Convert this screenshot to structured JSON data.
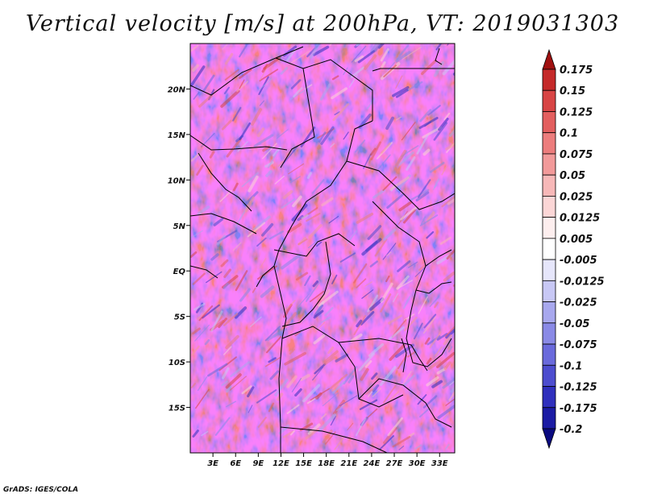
{
  "title": "Vertical velocity [m/s] at 200hPa, VT: 2019031303",
  "credit": "GrADS: IGES/COLA",
  "map": {
    "variable": "Vertical velocity",
    "units": "m/s",
    "level": "200hPa",
    "valid_time": "2019031303",
    "lon_range": [
      0,
      35
    ],
    "lat_range": [
      -20,
      25
    ],
    "lat_ticks": [
      {
        "value": 20,
        "label": "20N"
      },
      {
        "value": 15,
        "label": "15N"
      },
      {
        "value": 10,
        "label": "10N"
      },
      {
        "value": 5,
        "label": "5N"
      },
      {
        "value": 0,
        "label": "EQ"
      },
      {
        "value": -5,
        "label": "5S"
      },
      {
        "value": -10,
        "label": "10S"
      },
      {
        "value": -15,
        "label": "15S"
      }
    ],
    "lon_ticks": [
      {
        "value": 3,
        "label": "3E"
      },
      {
        "value": 6,
        "label": "6E"
      },
      {
        "value": 9,
        "label": "9E"
      },
      {
        "value": 12,
        "label": "12E"
      },
      {
        "value": 15,
        "label": "15E"
      },
      {
        "value": 18,
        "label": "18E"
      },
      {
        "value": 21,
        "label": "21E"
      },
      {
        "value": 24,
        "label": "24E"
      },
      {
        "value": 27,
        "label": "27E"
      },
      {
        "value": 30,
        "label": "30E"
      },
      {
        "value": 33,
        "label": "33E"
      }
    ]
  },
  "colorbar": {
    "labels": [
      "0.175",
      "0.15",
      "0.125",
      "0.1",
      "0.075",
      "0.05",
      "0.025",
      "0.0125",
      "0.005",
      "-0.005",
      "-0.0125",
      "-0.025",
      "-0.05",
      "-0.075",
      "-0.1",
      "-0.125",
      "-0.175",
      "-0.2"
    ],
    "colors": [
      "#a01010",
      "#c52a2a",
      "#d84545",
      "#e35f5f",
      "#ec7d7d",
      "#f29a9a",
      "#f7b8b8",
      "#fbd6d6",
      "#fdeeee",
      "#ffffff",
      "#e6e6fb",
      "#c8c8f5",
      "#a8a8ee",
      "#8a8ae6",
      "#6a6adc",
      "#4d4dcf",
      "#3030bd",
      "#1c1ca4",
      "#0a0a80"
    ]
  }
}
